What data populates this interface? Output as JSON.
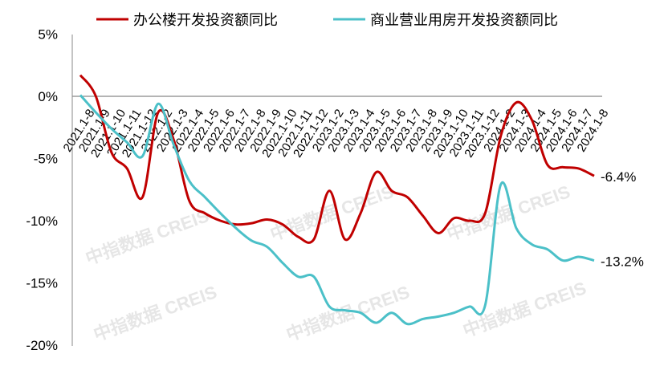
{
  "watermark": "中指数据 CREIS",
  "chart_data": {
    "type": "line",
    "title": "",
    "xlabel": "",
    "ylabel": "",
    "ylim": [
      -20,
      5
    ],
    "yticks": [
      "5%",
      "0%",
      "-5%",
      "-10%",
      "-15%",
      "-20%"
    ],
    "ytick_values": [
      5,
      0,
      -5,
      -10,
      -15,
      -20
    ],
    "grid": false,
    "legend_position": "top",
    "categories": [
      "2021.1-8",
      "2021.1-9",
      "2021.1-10",
      "2021.1-11",
      "2021.1-12",
      "2022.1-2",
      "2022.1-3",
      "2022.1-4",
      "2022.1-5",
      "2022.1-6",
      "2022.1-7",
      "2022.1-8",
      "2022.1-9",
      "2022.1-10",
      "2022.1-11",
      "2022.1-12",
      "2023.1-2",
      "2023.1-3",
      "2023.1-4",
      "2023.1-5",
      "2023.1-6",
      "2023.1-7",
      "2023.1-8",
      "2023.1-9",
      "2023.1-10",
      "2023.1-11",
      "2023.1-12",
      "2024.1-2",
      "2024.1-3",
      "2024.1-4",
      "2024.1-5",
      "2024.1-6",
      "2024.1-7",
      "2024.1-8"
    ],
    "series": [
      {
        "name": "办公楼开发投资额同比",
        "color": "#C00000",
        "end_label": "-6.4%",
        "values": [
          1.7,
          0,
          -4.5,
          -5.8,
          -8.1,
          -1.3,
          -3.5,
          -8.4,
          -9.4,
          -10.0,
          -10.3,
          -10.2,
          -9.9,
          -10.3,
          -11.3,
          -11.5,
          -7.6,
          -11.5,
          -9.4,
          -6.1,
          -7.6,
          -8.1,
          -9.6,
          -11.0,
          -9.8,
          -10.0,
          -9.4,
          -3.2,
          -0.5,
          -1.9,
          -5.5,
          -5.7,
          -5.8,
          -6.4
        ]
      },
      {
        "name": "商业营业用房开发投资额同比",
        "color": "#4BC0C8",
        "end_label": "-13.2%",
        "values": [
          0.1,
          -1.3,
          -2.6,
          -3.7,
          -4.8,
          -0.6,
          -3.9,
          -6.8,
          -8.1,
          -9.4,
          -10.6,
          -11.6,
          -12.1,
          -13.4,
          -14.5,
          -14.5,
          -16.9,
          -17.2,
          -17.4,
          -18.2,
          -17.4,
          -18.3,
          -17.9,
          -17.7,
          -17.4,
          -16.9,
          -16.8,
          -7.1,
          -10.6,
          -11.9,
          -12.3,
          -13.2,
          -12.9,
          -13.2
        ]
      }
    ]
  }
}
